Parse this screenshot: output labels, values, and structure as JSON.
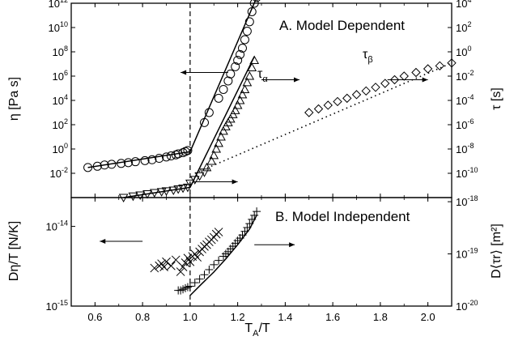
{
  "chart_data": [
    {
      "type": "scatter",
      "title": "A. Model Dependent",
      "xlabel": "TA/T",
      "xlim": [
        0.5,
        2.1
      ],
      "y_log": true,
      "ylabel_left": "η [Pa s]",
      "ylim_left": [
        0.0001,
        1000000000000.0
      ],
      "ylabel_right": "τ [s]",
      "ylim_right": [
        1e-12,
        10000.0
      ],
      "y_left_tick_labels": [
        "10-2",
        "100",
        "102",
        "104",
        "106",
        "108",
        "1010",
        "1012"
      ],
      "y_right_tick_labels": [
        "10-10",
        "10-8",
        "10-6",
        "10-4",
        "10-2",
        "100",
        "102",
        "104"
      ],
      "annotations": [
        "τα",
        "τβ"
      ],
      "series": [
        {
          "marker": "circle",
          "axis": "left",
          "x": [
            0.57,
            0.61,
            0.64,
            0.67,
            0.71,
            0.74,
            0.77,
            0.81,
            0.84,
            0.87,
            0.9,
            0.92,
            0.94,
            0.95,
            0.97,
            0.98,
            0.99,
            1.06,
            1.08,
            1.12,
            1.14,
            1.16,
            1.17,
            1.19,
            1.2,
            1.21,
            1.22,
            1.23,
            1.24,
            1.25,
            1.26,
            1.27,
            1.28
          ],
          "y": [
            0.03,
            0.038,
            0.048,
            0.055,
            0.065,
            0.075,
            0.09,
            0.11,
            0.13,
            0.17,
            0.22,
            0.27,
            0.33,
            0.4,
            0.5,
            0.62,
            0.75,
            150,
            1000,
            15000,
            80000,
            400000,
            1500000,
            6000000,
            20000000,
            60000000,
            200000000,
            1000000000,
            5000000000,
            30000000000,
            200000000000,
            1000000000000,
            3000000000000
          ]
        },
        {
          "marker": "triangle-down",
          "axis": "right",
          "x": [
            0.72,
            0.76,
            0.79,
            0.82,
            0.85,
            0.88,
            0.9,
            0.93,
            0.95,
            0.97,
            0.99,
            1.0,
            1.02,
            1.04,
            1.06
          ],
          "y": [
            1e-12,
            1.3e-12,
            1.6e-12,
            2e-12,
            2.5e-12,
            3e-12,
            3.5e-12,
            4e-12,
            5e-12,
            6e-12,
            7e-12,
            1.5e-11,
            3e-11,
            6e-11,
            1.2e-10
          ]
        },
        {
          "marker": "triangle-up",
          "axis": "right",
          "x": [
            1.07,
            1.09,
            1.1,
            1.11,
            1.12,
            1.13,
            1.14,
            1.15,
            1.16,
            1.17,
            1.18,
            1.19,
            1.2,
            1.21,
            1.22,
            1.23,
            1.24,
            1.25,
            1.26,
            1.27
          ],
          "y": [
            3e-10,
            1e-09,
            3e-09,
            1e-08,
            3e-08,
            1e-07,
            3e-07,
            7e-07,
            1.5e-06,
            3e-06,
            7e-06,
            1.5e-05,
            4e-05,
            0.0001,
            0.0003,
            0.0008,
            0.003,
            0.01,
            0.05,
            0.2
          ]
        },
        {
          "marker": "diamond",
          "axis": "right",
          "x": [
            1.5,
            1.54,
            1.58,
            1.62,
            1.66,
            1.7,
            1.74,
            1.78,
            1.82,
            1.86,
            1.9,
            1.95,
            2.0,
            2.05,
            2.1
          ],
          "y": [
            1e-05,
            2e-05,
            4e-05,
            8e-05,
            0.00015,
            0.0003,
            0.0006,
            0.0012,
            0.0025,
            0.005,
            0.01,
            0.02,
            0.04,
            0.07,
            0.12
          ]
        }
      ],
      "fit_lines": [
        {
          "style": "solid",
          "axis": "left",
          "x": [
            0.57,
            1.0,
            1.28
          ],
          "y": [
            0.03,
            0.6,
            3000000000000
          ]
        },
        {
          "style": "solid",
          "axis": "right",
          "x": [
            0.72,
            1.0,
            1.27
          ],
          "y": [
            1e-12,
            7e-12,
            0.4
          ]
        },
        {
          "style": "dotted",
          "axis": "right",
          "x": [
            1.02,
            2.1
          ],
          "y": [
            1e-10,
            0.12
          ]
        }
      ],
      "arrows": [
        {
          "x_from": 1.16,
          "x_to": 0.96,
          "y": 2000000.0,
          "axis": "left"
        },
        {
          "x_from": 1.3,
          "x_to": 1.46,
          "y": 0.005,
          "axis": "right"
        },
        {
          "x_from": 1.83,
          "x_to": 2.0,
          "y": 0.005,
          "axis": "right"
        },
        {
          "x_from": 1.01,
          "x_to": 1.2,
          "y": 2e-11,
          "axis": "right"
        }
      ],
      "reference_line_x": 1.0
    },
    {
      "type": "scatter",
      "title": "B. Model Independent",
      "xlabel": "TA/T",
      "x_tick_labels": [
        "0.6",
        "0.8",
        "1.0",
        "1.2",
        "1.4",
        "1.6",
        "1.8",
        "2.0"
      ],
      "xlim": [
        0.5,
        2.1
      ],
      "y_log": true,
      "ylabel_left": "Dη/T [N/K]",
      "ylim_left": [
        1e-15,
        2.3e-14
      ],
      "ylabel_right": "D⟨τr⟩ [m²]",
      "ylim_right": [
        1e-20,
        1.2e-18
      ],
      "y_left_tick_labels": [
        "10-15",
        "10-14"
      ],
      "y_right_tick_labels": [
        "10-20",
        "10-19",
        "10-18"
      ],
      "series": [
        {
          "marker": "x",
          "axis": "left",
          "x": [
            0.85,
            0.87,
            0.88,
            0.89,
            0.9,
            0.92,
            0.94,
            0.96,
            0.97,
            0.98,
            0.99,
            1.0,
            1.01,
            1.02,
            1.03,
            1.04,
            1.05,
            1.06,
            1.07,
            1.08,
            1.09,
            1.1,
            1.11,
            1.12
          ],
          "y": [
            3e-15,
            3.2e-15,
            3.4e-15,
            3.1e-15,
            3.6e-15,
            3.2e-15,
            3.8e-15,
            2.7e-15,
            3.1e-15,
            3.5e-15,
            4e-15,
            3.6e-15,
            4.2e-15,
            4.5e-15,
            4.1e-15,
            4.8e-15,
            5.2e-15,
            5.6e-15,
            5.9e-15,
            6.4e-15,
            6.8e-15,
            7.3e-15,
            8e-15,
            8.5e-15
          ]
        },
        {
          "marker": "plus",
          "axis": "right",
          "x": [
            0.95,
            0.96,
            0.97,
            0.98,
            0.99,
            1.0,
            1.02,
            1.04,
            1.06,
            1.08,
            1.1,
            1.12,
            1.14,
            1.15,
            1.16,
            1.17,
            1.18,
            1.19,
            1.2,
            1.21,
            1.22,
            1.23,
            1.24,
            1.25,
            1.26,
            1.27,
            1.28
          ],
          "y": [
            2e-20,
            2e-20,
            2.1e-20,
            2.2e-20,
            2.3e-20,
            2.4e-20,
            2.8e-20,
            3.3e-20,
            4e-20,
            5e-20,
            6.2e-20,
            7.5e-20,
            9e-20,
            1e-19,
            1.1e-19,
            1.25e-19,
            1.4e-19,
            1.6e-19,
            1.8e-19,
            2e-19,
            2.3e-19,
            2.7e-19,
            3.2e-19,
            3.8e-19,
            4.6e-19,
            5.5e-19,
            6.5e-19
          ]
        }
      ],
      "fit_lines": [
        {
          "style": "solid",
          "axis": "right",
          "x": [
            1.0,
            1.05,
            1.1,
            1.15,
            1.2,
            1.25,
            1.28
          ],
          "y": [
            1.6e-20,
            2.7e-20,
            4.5e-20,
            8e-20,
            1.5e-19,
            3e-19,
            5.5e-19
          ]
        }
      ],
      "arrows": [
        {
          "x_from": 0.8,
          "x_to": 0.62,
          "y": 6.5e-15,
          "axis": "left"
        },
        {
          "x_from": 1.27,
          "x_to": 1.44,
          "y": 1.5e-19,
          "axis": "right"
        }
      ],
      "reference_line_x": 1.0
    }
  ]
}
